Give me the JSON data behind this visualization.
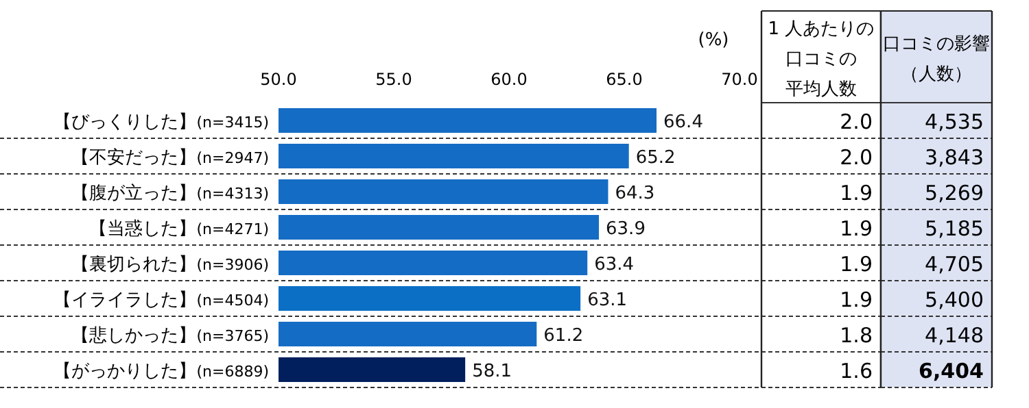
{
  "chart_data": [
    {
      "type": "bar",
      "orientation": "horizontal",
      "xlabel": "(%)",
      "categories": [
        "【びっくりした】(n=3415)",
        "【不安だった】(n=2947)",
        "【腹が立った】(n=4313)",
        "【当惑した】(n=4271)",
        "【裏切られた】(n=3906)",
        "【イライラした】(n=4504)",
        "【悲しかった】(n=3765)",
        "【がっかりした】(n=6889)"
      ],
      "values": [
        66.4,
        65.2,
        64.3,
        63.9,
        63.4,
        63.1,
        61.2,
        58.1
      ],
      "colors": [
        "#156cc4",
        "#156cc4",
        "#156cc4",
        "#156cc4",
        "#156cc4",
        "#0b6fc6",
        "#156cc4",
        "#001f5c"
      ],
      "xlim": [
        50,
        70
      ],
      "xticks": [
        {
          "value": 50,
          "label": "50.0"
        },
        {
          "value": 55,
          "label": "55.0"
        },
        {
          "value": 60,
          "label": "60.0"
        },
        {
          "value": 65,
          "label": "65.0"
        },
        {
          "value": 70,
          "label": "70.0"
        }
      ],
      "data_labels": true,
      "grid": false
    },
    {
      "type": "other",
      "annotations": [
        "1 人あたりの",
        "口コミの",
        "平均人数"
      ],
      "data_labels": true,
      "values": [
        2.0,
        2.0,
        1.9,
        1.9,
        1.9,
        1.9,
        1.8,
        1.6
      ],
      "value_labels": [
        "2.0",
        "2.0",
        "1.9",
        "1.9",
        "1.9",
        "1.9",
        "1.8",
        "1.6"
      ]
    },
    {
      "type": "other",
      "annotations": [
        "口コミの影響",
        "（人数）"
      ],
      "data_labels": true,
      "color": "#dde3f3",
      "values": [
        4535,
        3843,
        5269,
        5185,
        4705,
        5400,
        4148,
        6404
      ],
      "value_labels": [
        "4,535",
        "3,843",
        "5,269",
        "5,185",
        "4,705",
        "5,400",
        "4,148",
        "6,404"
      ]
    }
  ]
}
